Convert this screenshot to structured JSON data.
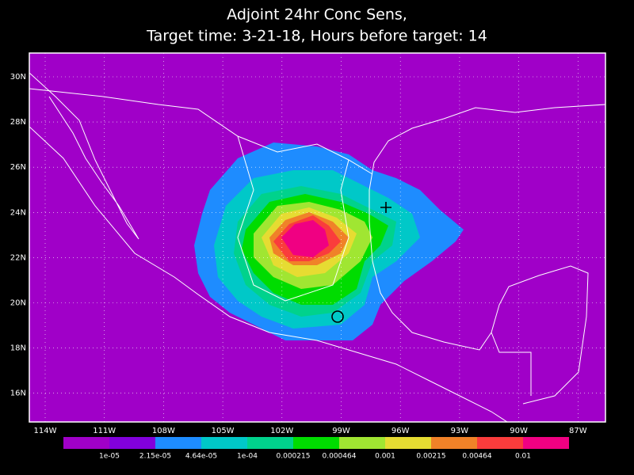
{
  "title": {
    "line1": "Adjoint 24hr Conc Sens,",
    "line2": "Target time: 3-21-18, Hours before target: 14"
  },
  "map": {
    "lat_labels": [
      "30N",
      "28N",
      "26N",
      "24N",
      "22N",
      "20N",
      "18N",
      "16N"
    ],
    "lon_labels": [
      "114W",
      "111W",
      "108W",
      "105W",
      "102W",
      "99W",
      "96W",
      "93W",
      "90W",
      "87W"
    ]
  },
  "colorbar": {
    "colors": [
      "#a000c8",
      "#8200dc",
      "#1e8cff",
      "#00c8c8",
      "#00d28c",
      "#00dc00",
      "#a0e632",
      "#e6dc32",
      "#f08228",
      "#fa3c3c",
      "#f00082"
    ],
    "labels": [
      "1e-05",
      "2.15e-05",
      "4.64e-05",
      "1e-04",
      "0.000215",
      "0.000464",
      "0.001",
      "0.00215",
      "0.00464",
      "0.01"
    ]
  }
}
